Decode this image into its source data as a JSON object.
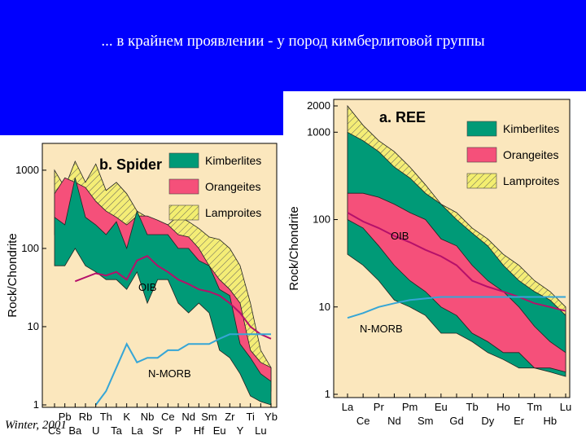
{
  "slide": {
    "title": "... в крайнем проявлении - у пород кимберлитовой группы",
    "credit": "Winter, 2001",
    "header_color": "#0000fe"
  },
  "colors": {
    "kimberlite": "#009a77",
    "orangeite": "#f5507a",
    "lamproite": "#f3ee70",
    "oib": "#b5106a",
    "nmorb": "#36a6d6",
    "background": "#fbe7bd"
  },
  "chart_data": [
    {
      "type": "area",
      "panel_title": "b. Spider",
      "ylabel": "Rock/Chondrite",
      "y_scale": "log",
      "ylim": [
        1,
        2000
      ],
      "y_ticks": [
        1,
        10,
        100,
        1000
      ],
      "y_tick_labels": [
        "1",
        "10",
        "100",
        "1000"
      ],
      "x_labels_top": [
        "Pb",
        "Rb",
        "Th",
        "K",
        "Nb",
        "Ce",
        "Nd",
        "Sm",
        "Zr",
        "Ti",
        "Yb"
      ],
      "x_labels_bottom": [
        "Cs",
        "Ba",
        "U",
        "Ta",
        "La",
        "Sr",
        "P",
        "Hf",
        "Eu",
        "Y",
        "Lu"
      ],
      "categories": [
        "Cs",
        "Pb",
        "Ba",
        "Rb",
        "U",
        "Th",
        "Ta",
        "K",
        "La",
        "Nb",
        "Sr",
        "Ce",
        "P",
        "Nd",
        "Hf",
        "Sm",
        "Eu",
        "Zr",
        "Y",
        "Ti",
        "Lu",
        "Yb"
      ],
      "legend": [
        {
          "label": "Kimberlites",
          "key": "kimberlite"
        },
        {
          "label": "Orangeites",
          "key": "orangeite"
        },
        {
          "label": "Lamproites",
          "key": "lamproite"
        }
      ],
      "series": [
        {
          "name": "Lamproites",
          "key": "lamproite",
          "upper": [
            1000,
            600,
            1300,
            700,
            1200,
            550,
            700,
            500,
            300,
            250,
            220,
            200,
            260,
            220,
            180,
            140,
            130,
            100,
            60,
            20,
            5,
            3
          ],
          "lower": [
            150,
            80,
            400,
            160,
            120,
            100,
            100,
            40,
            80,
            60,
            70,
            80,
            60,
            60,
            50,
            40,
            20,
            12,
            4,
            2.5,
            1.8,
            1.5
          ]
        },
        {
          "name": "Orangeites",
          "key": "orangeite",
          "upper": [
            500,
            800,
            700,
            600,
            400,
            300,
            250,
            200,
            260,
            260,
            230,
            200,
            150,
            140,
            100,
            60,
            40,
            30,
            20,
            5,
            3.5,
            3
          ],
          "lower": [
            150,
            120,
            200,
            100,
            100,
            80,
            70,
            50,
            120,
            90,
            80,
            80,
            60,
            40,
            40,
            30,
            20,
            15,
            4,
            2.5,
            1.8,
            1.7
          ]
        },
        {
          "name": "Kimberlites",
          "key": "kimberlite",
          "upper": [
            250,
            200,
            800,
            250,
            200,
            150,
            220,
            100,
            300,
            150,
            150,
            150,
            100,
            100,
            70,
            60,
            30,
            25,
            6,
            4,
            2.5,
            2
          ],
          "lower": [
            60,
            60,
            100,
            60,
            50,
            40,
            40,
            30,
            50,
            20,
            40,
            40,
            20,
            15,
            20,
            15,
            5,
            4,
            2.5,
            1.3,
            1.1,
            1
          ]
        },
        {
          "name": "OIB",
          "key": "oib",
          "x": [
            "Ba",
            "U",
            "Th",
            "Ta",
            "K",
            "La",
            "Nb",
            "Sr",
            "Ce",
            "P",
            "Nd",
            "Hf",
            "Sm",
            "Eu",
            "Zr",
            "Y",
            "Ti",
            "Lu",
            "Yb"
          ],
          "values": [
            38,
            48,
            45,
            50,
            40,
            70,
            80,
            60,
            50,
            40,
            35,
            30,
            28,
            25,
            20,
            15,
            10,
            8,
            7
          ]
        },
        {
          "name": "N-MORB",
          "key": "nmorb",
          "x": [
            "U",
            "Th",
            "Ta",
            "K",
            "La",
            "Nb",
            "Sr",
            "Ce",
            "P",
            "Nd",
            "Hf",
            "Sm",
            "Eu",
            "Zr",
            "Y",
            "Ti",
            "Lu",
            "Yb"
          ],
          "values": [
            1,
            1.5,
            3,
            6,
            3.5,
            4,
            4,
            5,
            5,
            6,
            6,
            6,
            7,
            8,
            8,
            8,
            8,
            8
          ]
        }
      ]
    },
    {
      "type": "area",
      "panel_title": "a. REE",
      "ylabel": "Rock/Chondrite",
      "y_scale": "log",
      "ylim": [
        1,
        2000
      ],
      "y_ticks": [
        1,
        10,
        100,
        1000,
        2000
      ],
      "y_tick_labels": [
        "1",
        "10",
        "100",
        "1000",
        "2000"
      ],
      "x_labels_top": [
        "La",
        "Pr",
        "Pm",
        "Eu",
        "Tb",
        "Ho",
        "Tm",
        "Lu"
      ],
      "x_labels_bottom": [
        "Ce",
        "Nd",
        "Sm",
        "Gd",
        "Dy",
        "Er",
        "Hb"
      ],
      "categories": [
        "La",
        "Ce",
        "Pr",
        "Nd",
        "Pm",
        "Sm",
        "Eu",
        "Gd",
        "Tb",
        "Dy",
        "Ho",
        "Er",
        "Tm",
        "Hb",
        "Lu"
      ],
      "legend": [
        {
          "label": "Kimberlites",
          "key": "kimberlite"
        },
        {
          "label": "Orangeites",
          "key": "orangeite"
        },
        {
          "label": "Lamproites",
          "key": "lamproite"
        }
      ],
      "series": [
        {
          "name": "Lamproites",
          "key": "lamproite",
          "upper": [
            2000,
            1200,
            800,
            600,
            400,
            250,
            150,
            120,
            80,
            60,
            40,
            30,
            20,
            15,
            10
          ],
          "lower": [
            200,
            200,
            180,
            150,
            120,
            100,
            60,
            50,
            30,
            20,
            15,
            10,
            6,
            4,
            3
          ]
        },
        {
          "name": "Kimberlites",
          "key": "kimberlite",
          "upper": [
            1000,
            800,
            600,
            400,
            300,
            200,
            150,
            100,
            70,
            50,
            30,
            20,
            15,
            12,
            8
          ],
          "lower": [
            40,
            30,
            20,
            12,
            10,
            8,
            5,
            5,
            4,
            3,
            2.5,
            2,
            2,
            1.8,
            1.6
          ]
        },
        {
          "name": "Orangeites",
          "key": "orangeite",
          "upper": [
            200,
            200,
            180,
            150,
            120,
            100,
            60,
            50,
            30,
            20,
            15,
            10,
            6,
            4,
            3
          ],
          "lower": [
            100,
            80,
            50,
            30,
            20,
            15,
            10,
            8,
            5,
            4,
            3,
            3,
            2,
            2,
            1.8
          ]
        },
        {
          "name": "OIB",
          "key": "oib",
          "values": [
            120,
            95,
            80,
            65,
            55,
            45,
            38,
            30,
            20,
            17,
            15,
            13,
            11,
            10,
            9
          ]
        },
        {
          "name": "N-MORB",
          "key": "nmorb",
          "values": [
            7.5,
            8.5,
            10,
            11,
            12,
            12.5,
            13,
            13,
            13,
            13,
            13,
            13,
            13,
            13,
            13
          ]
        }
      ]
    }
  ],
  "labels": {
    "oib": "OIB",
    "nmorb": "N-MORB"
  }
}
